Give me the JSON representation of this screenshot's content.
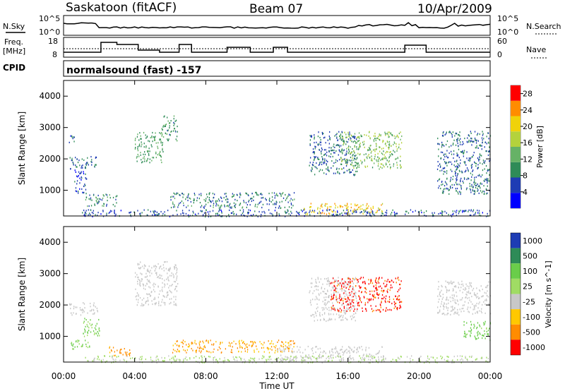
{
  "header": {
    "station": "Saskatoon (fitACF)",
    "beam": "Beam 07",
    "date": "10/Apr/2009"
  },
  "top_panels": {
    "nsky_label": "N.Sky",
    "nsearch_label": "N.Search",
    "noise_tick_hi": "10^5",
    "noise_tick_lo": "10^0",
    "freq_label_1": "Freq.",
    "freq_label_2": "[MHz]",
    "freq_tick_hi": "18",
    "freq_tick_lo": "8",
    "nave_label": "Nave",
    "nave_tick_hi": "60",
    "nave_tick_lo": "0",
    "cpid_label": "CPID",
    "cpid_value": "normalsound (fast) -157"
  },
  "chart_data": [
    {
      "type": "heatmap",
      "title": "Power",
      "xlabel": "Time UT",
      "ylabel": "Slant Range [km]",
      "colorbar_label": "Power [dB]",
      "xlim": [
        "00:00",
        "24:00"
      ],
      "ylim": [
        180,
        4500
      ],
      "x_ticks": [
        "00:00",
        "04:00",
        "08:00",
        "12:00",
        "16:00",
        "20:00",
        "00:00"
      ],
      "y_ticks": [
        1000,
        2000,
        3000,
        4000
      ],
      "colorbar_ticks": [
        4,
        8,
        12,
        16,
        20,
        24,
        28
      ],
      "colorbar_range": [
        0,
        30
      ],
      "colorbar_colors": [
        "#0000ff",
        "#1e3cb4",
        "#2e8b57",
        "#66b266",
        "#b4d23c",
        "#f0d20a",
        "#ff8c00",
        "#ff0000"
      ],
      "regions": [
        {
          "t": [
            0.3,
            1.9
          ],
          "r": [
            1700,
            2100
          ],
          "level": 8
        },
        {
          "t": [
            0.3,
            0.6
          ],
          "r": [
            2500,
            2850
          ],
          "level": 6
        },
        {
          "t": [
            0.6,
            1.3
          ],
          "r": [
            900,
            1700
          ],
          "level": 6
        },
        {
          "t": [
            1.2,
            3.0
          ],
          "r": [
            500,
            900
          ],
          "level": 10
        },
        {
          "t": [
            4.0,
            5.6
          ],
          "r": [
            1900,
            2900
          ],
          "level": 12
        },
        {
          "t": [
            5.5,
            6.4
          ],
          "r": [
            2600,
            3400
          ],
          "level": 11
        },
        {
          "t": [
            6.0,
            13.0
          ],
          "r": [
            450,
            950
          ],
          "level": 9
        },
        {
          "t": [
            13.5,
            18.0
          ],
          "r": [
            250,
            600
          ],
          "level": 22
        },
        {
          "t": [
            13.8,
            16.5
          ],
          "r": [
            1500,
            2900
          ],
          "level": 8
        },
        {
          "t": [
            15.5,
            19.0
          ],
          "r": [
            1700,
            2900
          ],
          "level": 15
        },
        {
          "t": [
            21.0,
            24.0
          ],
          "r": [
            900,
            2900
          ],
          "level": 8
        },
        {
          "t": [
            1.0,
            24.0
          ],
          "r": [
            180,
            400
          ],
          "level": 7
        }
      ]
    },
    {
      "type": "heatmap",
      "title": "Velocity",
      "xlabel": "Time UT",
      "ylabel": "Slant Range [km]",
      "colorbar_label": "Velocity [m s^-1]",
      "xlim": [
        "00:00",
        "24:00"
      ],
      "ylim": [
        180,
        4500
      ],
      "x_ticks": [
        "00:00",
        "04:00",
        "08:00",
        "12:00",
        "16:00",
        "20:00",
        "00:00"
      ],
      "y_ticks": [
        1000,
        2000,
        3000,
        4000
      ],
      "colorbar_ticks": [
        "1000",
        "500",
        "100",
        "25",
        "-25",
        "-100",
        "-500",
        "-1000"
      ],
      "colorbar_colors": [
        "#1e3cb4",
        "#2e8b57",
        "#6acd4a",
        "#a0dc64",
        "#c8c8c8",
        "#ffc800",
        "#ff8c00",
        "#ff0000"
      ],
      "regions": [
        {
          "t": [
            0.3,
            1.9
          ],
          "r": [
            1700,
            2100
          ],
          "v": 0
        },
        {
          "t": [
            1.0,
            2.0
          ],
          "r": [
            1000,
            1600
          ],
          "v": 120
        },
        {
          "t": [
            0.3,
            1.5
          ],
          "r": [
            600,
            900
          ],
          "v": 120
        },
        {
          "t": [
            2.5,
            3.8
          ],
          "r": [
            400,
            700
          ],
          "v": -150
        },
        {
          "t": [
            4.0,
            6.4
          ],
          "r": [
            2000,
            3400
          ],
          "v": 0
        },
        {
          "t": [
            6.0,
            13.0
          ],
          "r": [
            500,
            900
          ],
          "v": -110
        },
        {
          "t": [
            12.0,
            18.0
          ],
          "r": [
            250,
            700
          ],
          "v": 0
        },
        {
          "t": [
            13.8,
            16.5
          ],
          "r": [
            1500,
            2900
          ],
          "v": 0
        },
        {
          "t": [
            15.0,
            19.0
          ],
          "r": [
            1800,
            2900
          ],
          "v": -600
        },
        {
          "t": [
            21.0,
            24.0
          ],
          "r": [
            1700,
            2800
          ],
          "v": 0
        },
        {
          "t": [
            22.5,
            24.0
          ],
          "r": [
            900,
            1500
          ],
          "v": 150
        },
        {
          "t": [
            1.0,
            24.0
          ],
          "r": [
            180,
            400
          ],
          "v": 30
        }
      ]
    }
  ]
}
